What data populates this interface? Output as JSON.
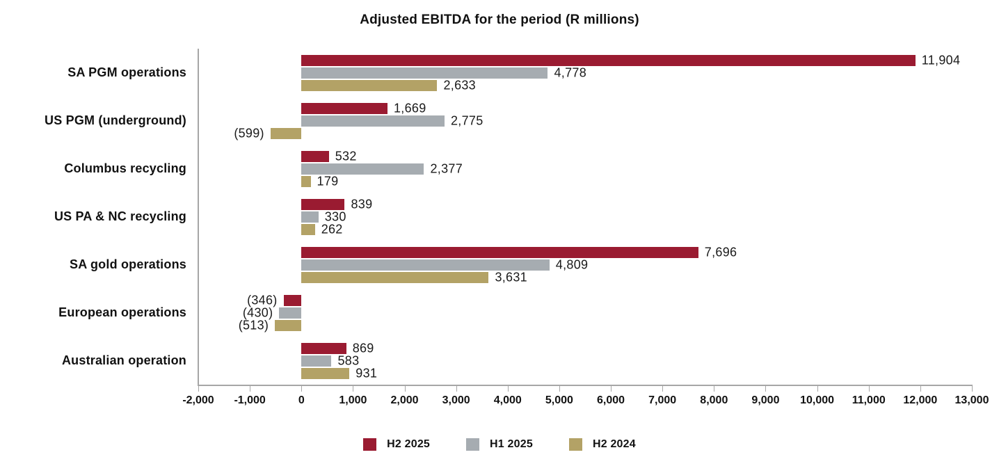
{
  "title": "Adjusted EBITDA for the period (R millions)",
  "chart_data": {
    "type": "bar",
    "orientation": "horizontal",
    "title": "Adjusted EBITDA for the period (R millions)",
    "categories": [
      "SA PGM operations",
      "US PGM (underground)",
      "Columbus recycling",
      "US PA & NC recycling",
      "SA gold operations",
      "European operations",
      "Australian operation"
    ],
    "series": [
      {
        "name": "H2 2025",
        "color": "#9A1B31",
        "values": [
          11904,
          1669,
          532,
          839,
          7696,
          -346,
          869
        ],
        "labels": [
          "11,904",
          "1,669",
          "532",
          "839",
          "7,696",
          "(346)",
          "869"
        ]
      },
      {
        "name": "H1 2025",
        "color": "#A6ACB1",
        "values": [
          4778,
          2775,
          2377,
          330,
          4809,
          -430,
          583
        ],
        "labels": [
          "4,778",
          "2,775",
          "2,377",
          "330",
          "4,809",
          "(430)",
          "583"
        ]
      },
      {
        "name": "H2 2024",
        "color": "#B3A266",
        "values": [
          2633,
          -599,
          179,
          262,
          3631,
          -513,
          931
        ],
        "labels": [
          "2,633",
          "(599)",
          "179",
          "262",
          "3,631",
          "(513)",
          "931"
        ]
      }
    ],
    "x_axis": {
      "min": -2000,
      "max": 13000,
      "tick_step": 1000,
      "tick_labels": [
        "-2,000",
        "-1,000",
        "0",
        "1,000",
        "2,000",
        "3,000",
        "4,000",
        "5,000",
        "6,000",
        "7,000",
        "8,000",
        "9,000",
        "10,000",
        "11,000",
        "12,000",
        "13,000"
      ]
    },
    "grid": false,
    "legend_position": "bottom",
    "axis_color": "#A6A6A6"
  }
}
